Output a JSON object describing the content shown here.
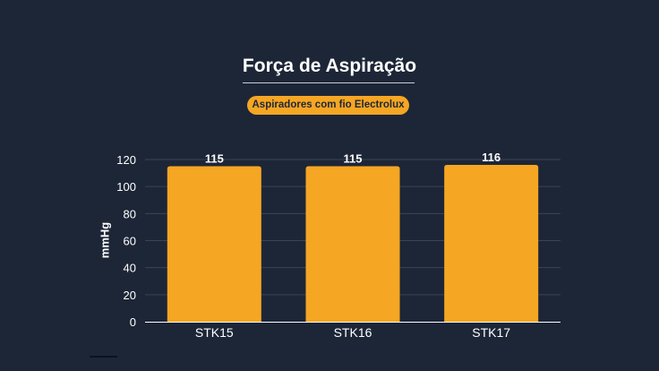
{
  "header": {
    "title": "Força de Aspiração",
    "subtitle": "Aspiradores com fio Electrolux"
  },
  "colors": {
    "background": "#1d2637",
    "bar": "#f5a623",
    "text": "#ffffff",
    "grid": "#3a4456"
  },
  "chart_data": {
    "type": "bar",
    "title": "Força de Aspiração",
    "subtitle": "Aspiradores com fio Electrolux",
    "categories": [
      "STK15",
      "STK16",
      "STK17"
    ],
    "values": [
      115,
      115,
      116
    ],
    "data_labels": [
      "115",
      "115",
      "116"
    ],
    "xlabel": "",
    "ylabel": "mmHg",
    "ylim": [
      0,
      120
    ],
    "yticks": [
      0,
      20,
      40,
      60,
      80,
      100,
      120
    ],
    "grid": true,
    "legend": "none"
  }
}
